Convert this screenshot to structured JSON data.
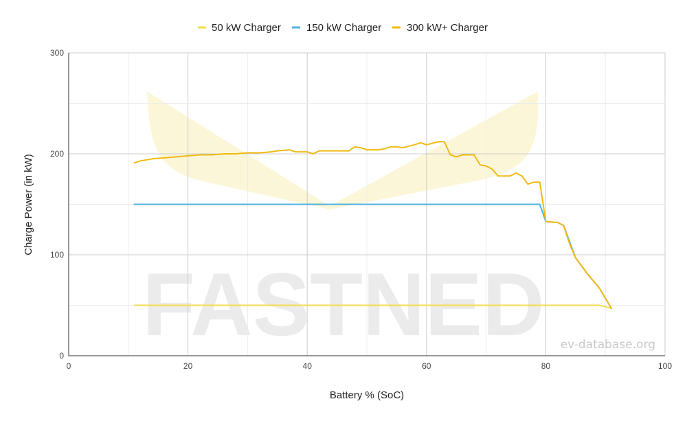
{
  "chart_data": {
    "type": "line",
    "xlabel": "Battery % (SoC)",
    "ylabel": "Charge Power (in kW)",
    "xlim": [
      0,
      100
    ],
    "ylim": [
      0,
      300
    ],
    "x_ticks": [
      "0",
      "20",
      "40",
      "60",
      "80",
      "100"
    ],
    "y_ticks": [
      "0",
      "100",
      "200",
      "300"
    ],
    "grid": true,
    "legend_position": "top-center",
    "series": [
      {
        "name": "50 kW Charger",
        "color": "#f5dd4b",
        "points": [
          [
            11,
            50
          ],
          [
            89,
            50
          ],
          [
            91,
            47
          ]
        ]
      },
      {
        "name": "150 kW Charger",
        "color": "#4db3e0",
        "points": [
          [
            11,
            150
          ],
          [
            79,
            150
          ],
          [
            80,
            133
          ],
          [
            82,
            132
          ],
          [
            83,
            129
          ],
          [
            85,
            97
          ],
          [
            87,
            81
          ],
          [
            89,
            67
          ],
          [
            91,
            47
          ]
        ]
      },
      {
        "name": "300 kW+ Charger",
        "color": "#f0b90f",
        "points": [
          [
            11,
            191
          ],
          [
            12,
            193
          ],
          [
            14,
            195
          ],
          [
            16,
            196
          ],
          [
            18,
            197
          ],
          [
            20,
            198
          ],
          [
            22,
            199
          ],
          [
            24,
            199
          ],
          [
            26,
            200
          ],
          [
            28,
            200
          ],
          [
            30,
            201
          ],
          [
            32,
            201
          ],
          [
            34,
            202
          ],
          [
            35,
            203
          ],
          [
            37,
            204
          ],
          [
            38,
            202
          ],
          [
            40,
            202
          ],
          [
            41,
            200
          ],
          [
            42,
            203
          ],
          [
            44,
            203
          ],
          [
            46,
            203
          ],
          [
            47,
            203
          ],
          [
            48,
            207
          ],
          [
            49,
            206
          ],
          [
            50,
            204
          ],
          [
            52,
            204
          ],
          [
            53,
            205
          ],
          [
            54,
            207
          ],
          [
            55,
            207
          ],
          [
            56,
            206
          ],
          [
            58,
            209
          ],
          [
            59,
            211
          ],
          [
            60,
            209
          ],
          [
            62,
            212
          ],
          [
            63,
            212
          ],
          [
            64,
            199
          ],
          [
            65,
            197
          ],
          [
            66,
            199
          ],
          [
            67,
            199
          ],
          [
            68,
            199
          ],
          [
            69,
            189
          ],
          [
            70,
            188
          ],
          [
            71,
            185
          ],
          [
            72,
            178
          ],
          [
            74,
            178
          ],
          [
            75,
            181
          ],
          [
            76,
            178
          ],
          [
            77,
            170
          ],
          [
            78,
            172
          ],
          [
            79,
            172
          ],
          [
            80,
            133
          ],
          [
            82,
            132
          ],
          [
            83,
            129
          ],
          [
            84,
            111
          ],
          [
            85,
            97
          ],
          [
            87,
            81
          ],
          [
            89,
            67
          ],
          [
            91,
            47
          ]
        ]
      }
    ]
  },
  "watermark": {
    "text": "FASTNED",
    "site": "ev-database.org"
  }
}
